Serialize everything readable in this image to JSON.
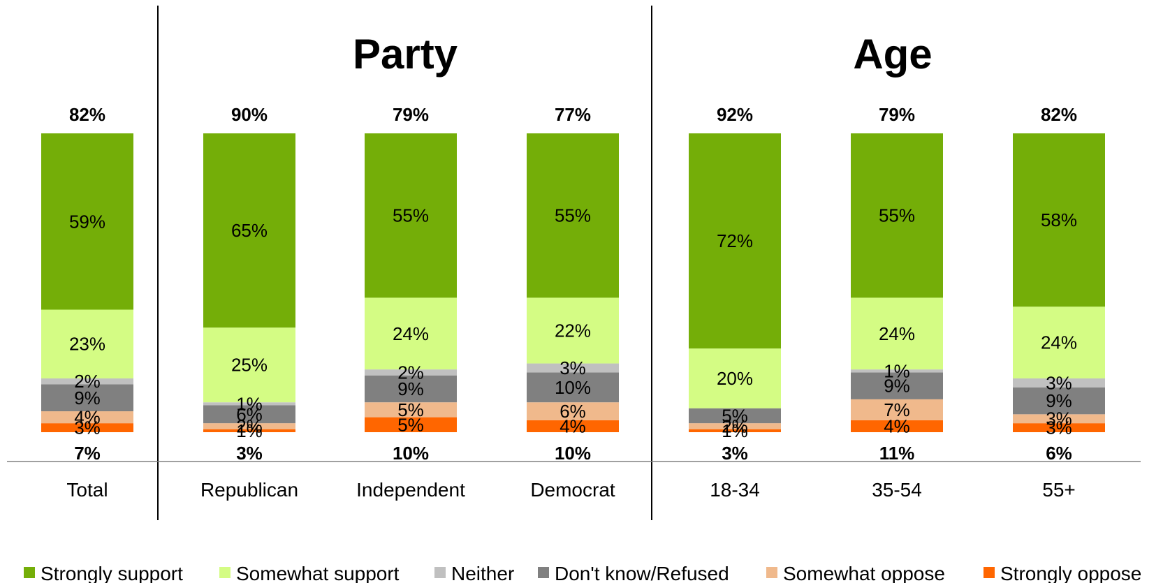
{
  "chart_data": {
    "type": "bar",
    "stacked": true,
    "group_titles": [
      "Party",
      "Age"
    ],
    "categories": [
      "Total",
      "Republican",
      "Independent",
      "Democrat",
      "18-34",
      "35-54",
      "55+"
    ],
    "series": [
      {
        "name": "Strongly oppose",
        "color": "#ff6600",
        "values": [
          3,
          1,
          5,
          4,
          1,
          4,
          3
        ],
        "labels": [
          "3%",
          "1%",
          "5%",
          "4%",
          "1%",
          "4%",
          "3%"
        ]
      },
      {
        "name": "Somewhat oppose",
        "color": "#f0b98c",
        "values": [
          4,
          2,
          5,
          6,
          2,
          7,
          3
        ],
        "labels": [
          "4%",
          "2%",
          "5%",
          "6%",
          "2%",
          "7%",
          "3%"
        ]
      },
      {
        "name": "Don't know/Refused",
        "color": "#808080",
        "values": [
          9,
          6,
          9,
          10,
          5,
          9,
          9
        ],
        "labels": [
          "9%",
          "6%",
          "9%",
          "10%",
          "5%",
          "9%",
          "9%"
        ]
      },
      {
        "name": "Neither",
        "color": "#c0c0c0",
        "values": [
          2,
          1,
          2,
          3,
          0,
          1,
          3
        ],
        "labels": [
          "2%",
          "1%",
          "2%",
          "3%",
          "",
          "1%",
          "3%"
        ]
      },
      {
        "name": "Somewhat support",
        "color": "#d4fc84",
        "values": [
          23,
          25,
          24,
          22,
          20,
          24,
          24
        ],
        "labels": [
          "23%",
          "25%",
          "24%",
          "22%",
          "20%",
          "24%",
          "24%"
        ]
      },
      {
        "name": "Strongly support",
        "color": "#74ae08",
        "values": [
          59,
          65,
          55,
          55,
          72,
          55,
          58
        ],
        "labels": [
          "59%",
          "65%",
          "55%",
          "55%",
          "72%",
          "55%",
          "58%"
        ]
      }
    ],
    "support_totals": [
      "82%",
      "90%",
      "79%",
      "77%",
      "92%",
      "79%",
      "82%"
    ],
    "oppose_totals": [
      "7%",
      "3%",
      "10%",
      "10%",
      "3%",
      "11%",
      "6%"
    ],
    "legend_order": [
      "Strongly support",
      "Somewhat support",
      "Neither",
      "Don't know/Refused",
      "Somewhat oppose",
      "Strongly oppose"
    ],
    "legend_position": "bottom",
    "ylim": [
      0,
      100
    ],
    "grid": false,
    "xlabel": "",
    "ylabel": ""
  }
}
